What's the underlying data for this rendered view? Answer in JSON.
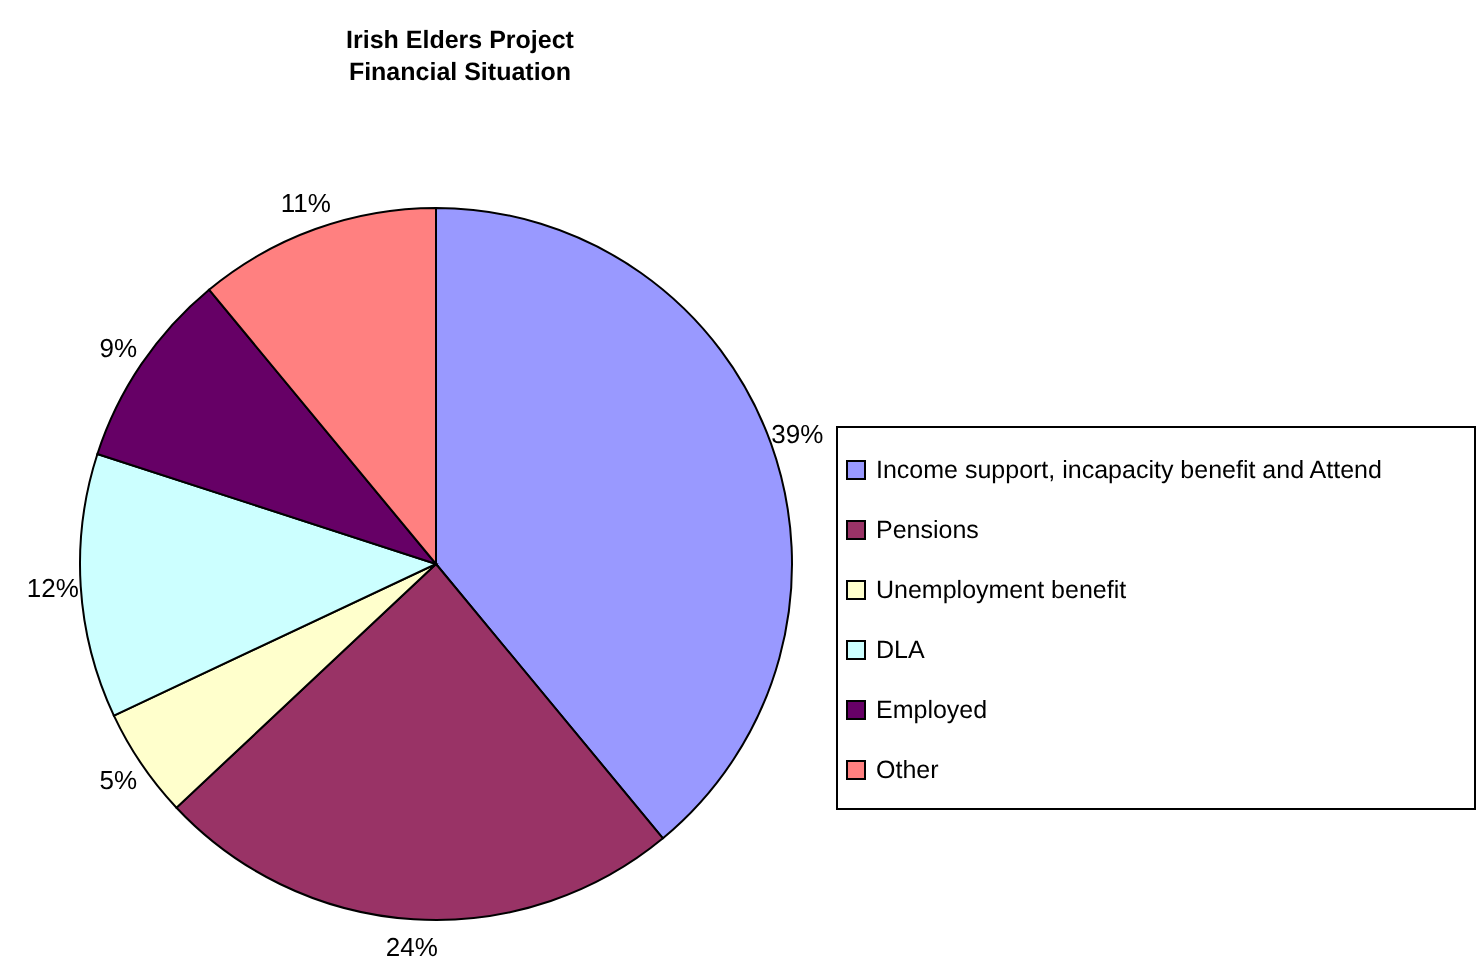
{
  "chart_data": {
    "type": "pie",
    "title": "Irish Elders Project\nFinancial Situation",
    "categories": [
      "Income support, incapacity benefit and Attend",
      "Pensions",
      "Unemployment benefit",
      "DLA",
      "Employed",
      "Other"
    ],
    "values": [
      39,
      24,
      5,
      12,
      9,
      11
    ],
    "value_labels": [
      "39%",
      "24%",
      "5%",
      "12%",
      "9%",
      "11%"
    ],
    "colors": [
      "#9999ff",
      "#993366",
      "#ffffcc",
      "#ccffff",
      "#660066",
      "#ff8080"
    ],
    "legend": "right"
  }
}
